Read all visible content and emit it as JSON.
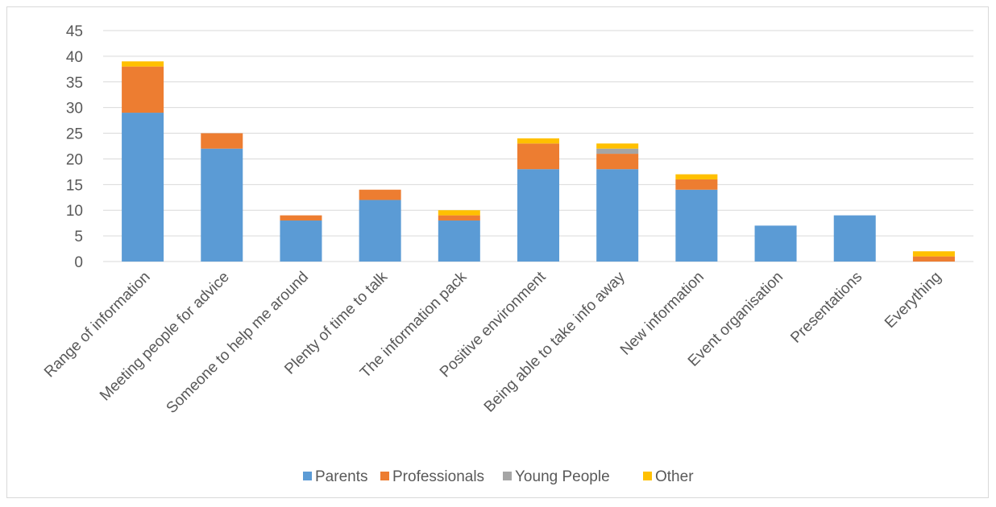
{
  "chart_data": {
    "type": "bar",
    "stacked": true,
    "categories": [
      "Range of information",
      "Meeting people for advice",
      "Someone to help me around",
      "Plenty of time to talk",
      "The information pack",
      "Positive environment",
      "Being able to take info away",
      "New information",
      "Event organisation",
      "Presentations",
      "Everything"
    ],
    "series": [
      {
        "name": "Parents",
        "color": "#5b9bd5",
        "values": [
          29,
          22,
          8,
          12,
          8,
          18,
          18,
          14,
          7,
          9,
          0
        ]
      },
      {
        "name": "Professionals",
        "color": "#ed7d31",
        "values": [
          9,
          3,
          1,
          2,
          1,
          5,
          3,
          2,
          0,
          0,
          1
        ]
      },
      {
        "name": "Young People",
        "color": "#a5a5a5",
        "values": [
          0,
          0,
          0,
          0,
          0,
          0,
          1,
          0,
          0,
          0,
          0
        ]
      },
      {
        "name": "Other",
        "color": "#ffc000",
        "values": [
          1,
          0,
          0,
          0,
          1,
          1,
          1,
          1,
          0,
          0,
          1
        ]
      }
    ],
    "ylim": [
      0,
      45
    ],
    "yticks": [
      "0",
      "5",
      "10",
      "15",
      "20",
      "25",
      "30",
      "35",
      "40",
      "45"
    ],
    "title": "",
    "xlabel": "",
    "ylabel": "",
    "grid": true,
    "legend_position": "bottom"
  }
}
